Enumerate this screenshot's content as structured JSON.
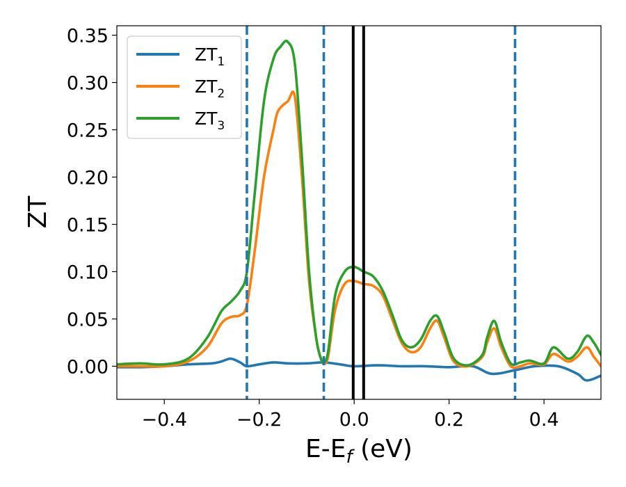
{
  "chart_data": {
    "type": "line",
    "xlabel_main": "E-E",
    "xlabel_sub": "f",
    "xlabel_unit": " (eV)",
    "ylabel": "ZT",
    "xlim": [
      -0.5,
      0.52
    ],
    "ylim": [
      -0.035,
      0.36
    ],
    "xticks": [
      -0.4,
      -0.2,
      0.0,
      0.2,
      0.4
    ],
    "xtick_labels": [
      "−0.4",
      "−0.2",
      "0.0",
      "0.2",
      "0.4"
    ],
    "yticks": [
      0.0,
      0.05,
      0.1,
      0.15,
      0.2,
      0.25,
      0.3,
      0.35
    ],
    "ytick_labels": [
      "0.00",
      "0.05",
      "0.10",
      "0.15",
      "0.20",
      "0.25",
      "0.30",
      "0.35"
    ],
    "grid": false,
    "legend_position": "top-left",
    "vertical_lines": [
      {
        "x": -0.226,
        "style": "dashed",
        "color": "#1f77b4"
      },
      {
        "x": -0.064,
        "style": "dashed",
        "color": "#1f77b4"
      },
      {
        "x": -0.002,
        "style": "solid",
        "color": "#000000"
      },
      {
        "x": 0.02,
        "style": "solid",
        "color": "#000000"
      },
      {
        "x": 0.339,
        "style": "dashed",
        "color": "#1f77b4"
      }
    ],
    "series": [
      {
        "name": "ZT",
        "sub": "1",
        "color": "#1f77b4",
        "x": [
          -0.5,
          -0.45,
          -0.4,
          -0.35,
          -0.3,
          -0.28,
          -0.26,
          -0.24,
          -0.226,
          -0.2,
          -0.17,
          -0.14,
          -0.1,
          -0.064,
          -0.03,
          0.0,
          0.05,
          0.1,
          0.15,
          0.2,
          0.25,
          0.29,
          0.34,
          0.38,
          0.43,
          0.47,
          0.49,
          0.52
        ],
        "y": [
          -0.001,
          -0.001,
          0.0,
          0.002,
          0.003,
          0.005,
          0.008,
          0.004,
          0.0,
          0.002,
          0.004,
          0.003,
          0.003,
          0.004,
          0.002,
          0.0,
          0.001,
          0.0,
          0.0,
          -0.001,
          0.0,
          -0.008,
          -0.004,
          0.0,
          0.0,
          -0.008,
          -0.015,
          -0.01
        ]
      },
      {
        "name": "ZT",
        "sub": "2",
        "color": "#ff7f0e",
        "x": [
          -0.5,
          -0.45,
          -0.4,
          -0.35,
          -0.31,
          -0.28,
          -0.26,
          -0.24,
          -0.226,
          -0.21,
          -0.19,
          -0.17,
          -0.16,
          -0.14,
          -0.125,
          -0.11,
          -0.095,
          -0.08,
          -0.07,
          -0.064,
          -0.055,
          -0.04,
          -0.02,
          0.0,
          0.02,
          0.04,
          0.06,
          0.08,
          0.1,
          0.12,
          0.14,
          0.16,
          0.175,
          0.19,
          0.21,
          0.24,
          0.27,
          0.28,
          0.295,
          0.31,
          0.33,
          0.35,
          0.37,
          0.4,
          0.42,
          0.45,
          0.47,
          0.49,
          0.505,
          0.52
        ],
        "y": [
          0.0,
          0.0,
          0.0,
          0.005,
          0.02,
          0.045,
          0.052,
          0.054,
          0.065,
          0.12,
          0.2,
          0.25,
          0.27,
          0.28,
          0.285,
          0.2,
          0.09,
          0.03,
          0.008,
          0.003,
          0.01,
          0.06,
          0.087,
          0.09,
          0.087,
          0.085,
          0.075,
          0.05,
          0.025,
          0.015,
          0.02,
          0.04,
          0.048,
          0.03,
          0.005,
          0.0,
          0.01,
          0.025,
          0.04,
          0.02,
          0.0,
          0.0,
          0.003,
          0.002,
          0.013,
          0.005,
          0.01,
          0.02,
          0.01,
          0.0
        ]
      },
      {
        "name": "ZT",
        "sub": "3",
        "color": "#2ca02c",
        "x": [
          -0.5,
          -0.45,
          -0.4,
          -0.35,
          -0.31,
          -0.28,
          -0.26,
          -0.24,
          -0.226,
          -0.21,
          -0.19,
          -0.17,
          -0.155,
          -0.14,
          -0.125,
          -0.11,
          -0.095,
          -0.08,
          -0.07,
          -0.064,
          -0.055,
          -0.04,
          -0.02,
          0.0,
          0.02,
          0.04,
          0.06,
          0.08,
          0.1,
          0.12,
          0.14,
          0.16,
          0.175,
          0.19,
          0.21,
          0.24,
          0.27,
          0.28,
          0.295,
          0.31,
          0.33,
          0.35,
          0.37,
          0.4,
          0.42,
          0.45,
          0.47,
          0.49,
          0.505,
          0.52
        ],
        "y": [
          0.002,
          0.003,
          0.002,
          0.008,
          0.03,
          0.058,
          0.068,
          0.08,
          0.1,
          0.18,
          0.28,
          0.325,
          0.338,
          0.343,
          0.32,
          0.22,
          0.1,
          0.03,
          0.008,
          0.004,
          0.015,
          0.075,
          0.1,
          0.105,
          0.1,
          0.095,
          0.08,
          0.055,
          0.028,
          0.02,
          0.028,
          0.048,
          0.053,
          0.035,
          0.008,
          0.001,
          0.012,
          0.03,
          0.048,
          0.025,
          0.003,
          0.004,
          0.006,
          0.003,
          0.02,
          0.008,
          0.015,
          0.032,
          0.025,
          0.012
        ]
      }
    ]
  }
}
